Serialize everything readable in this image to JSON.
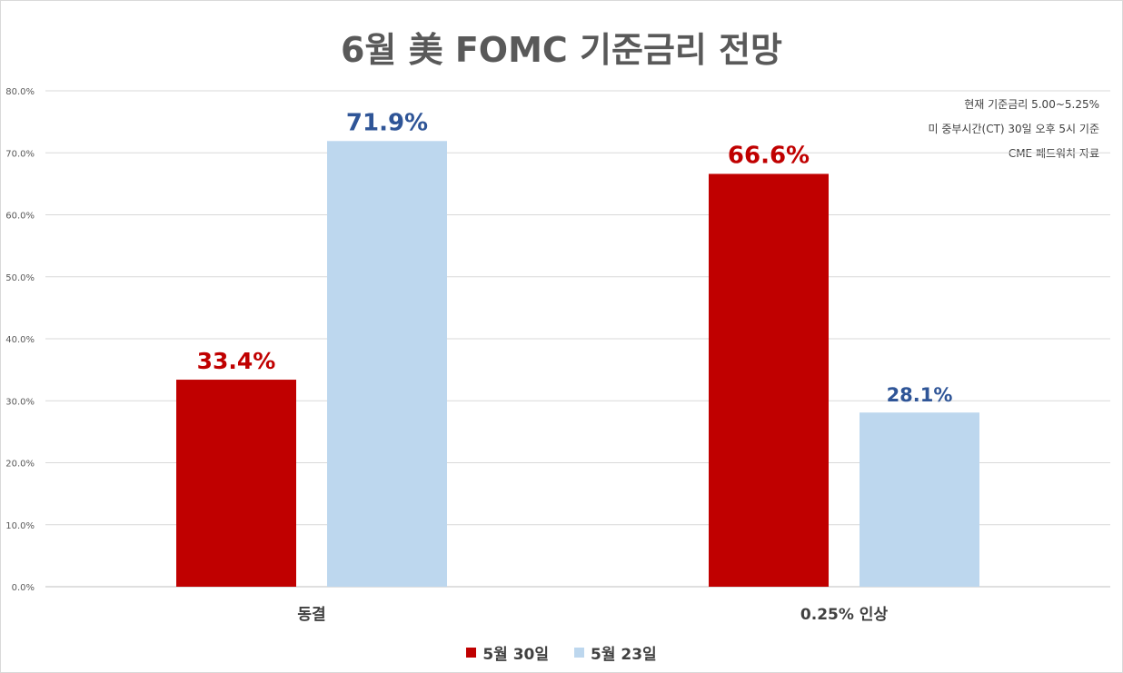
{
  "chart_data": {
    "type": "bar",
    "title": "6월 美 FOMC 기준금리 전망",
    "notes": [
      "현재 기준금리 5.00~5.25%",
      "미 중부시간(CT) 30일 오후 5시 기준",
      "CME 페드워치 자료"
    ],
    "categories": [
      "동결",
      "0.25% 인상"
    ],
    "series": [
      {
        "name": "5월 30일",
        "values": [
          33.4,
          66.6
        ],
        "labels": [
          "33.4%",
          "66.6%"
        ],
        "color": "#c00000",
        "label_color": "#c00000"
      },
      {
        "name": "5월 23일",
        "values": [
          71.9,
          28.1
        ],
        "labels": [
          "71.9%",
          "28.1%"
        ],
        "color": "#bdd7ee",
        "label_color": "#2f5597"
      }
    ],
    "ylim": [
      0,
      80
    ],
    "yticks": [
      "0.0%",
      "10.0%",
      "20.0%",
      "30.0%",
      "40.0%",
      "50.0%",
      "60.0%",
      "70.0%",
      "80.0%"
    ],
    "grid": true,
    "legend": "bottom-center",
    "xlabel": "",
    "ylabel": ""
  }
}
